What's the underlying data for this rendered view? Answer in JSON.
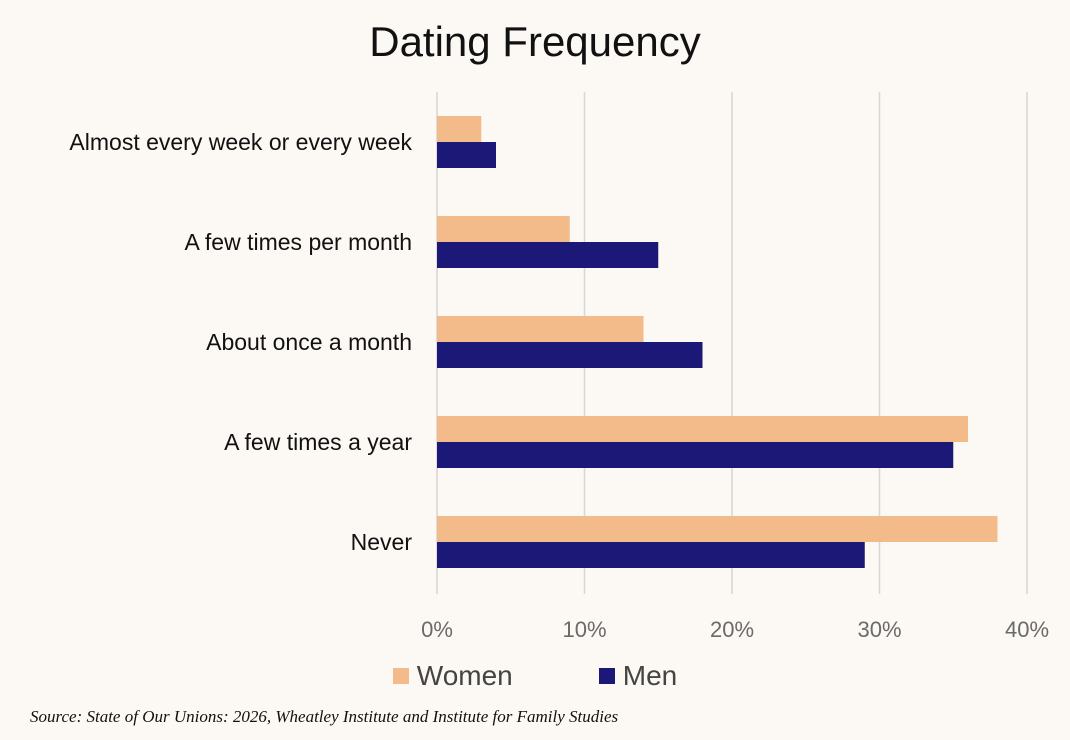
{
  "chart_data": {
    "type": "bar",
    "orientation": "horizontal",
    "title": "Dating Frequency",
    "categories": [
      "Almost every week or every week",
      "A few times per month",
      "About once a month",
      "A few times a year",
      "Never"
    ],
    "series": [
      {
        "name": "Women",
        "color": "#f4bb8a",
        "values": [
          3,
          9,
          14,
          36,
          38
        ]
      },
      {
        "name": "Men",
        "color": "#1b1878",
        "values": [
          4,
          15,
          18,
          35,
          29
        ]
      }
    ],
    "xlim": [
      0,
      40
    ],
    "x_ticks": [
      0,
      10,
      20,
      30,
      40
    ],
    "x_tick_labels": [
      "0%",
      "10%",
      "20%",
      "30%",
      "40%"
    ],
    "xlabel": "",
    "ylabel": "",
    "grid": "vertical",
    "legend_position": "bottom"
  },
  "source": "Source: State of Our Unions: 2026, Wheatley Institute and Institute for Family Studies"
}
